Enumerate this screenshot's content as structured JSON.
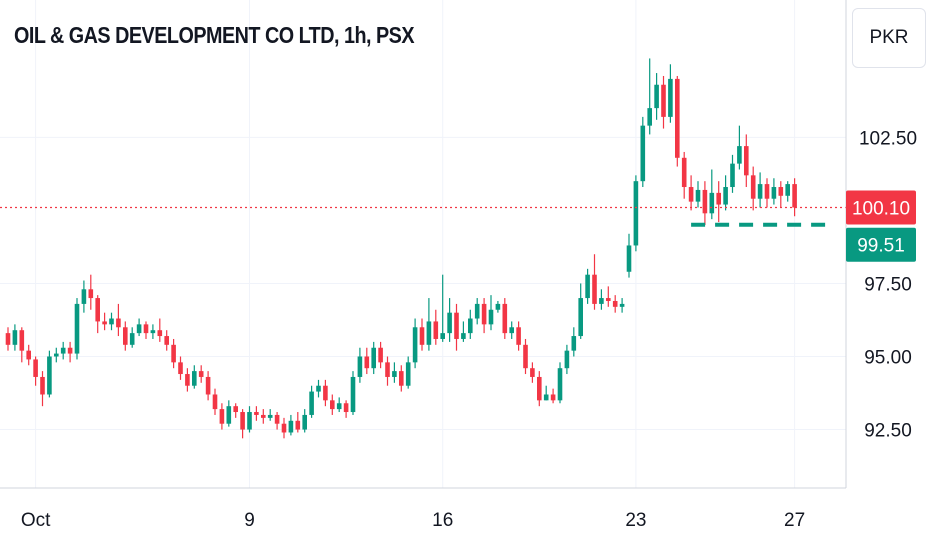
{
  "header": {
    "title": "OIL & GAS DEVELOPMENT CO LTD, 1h, PSX",
    "currency": "PKR"
  },
  "colors": {
    "up": "#089981",
    "down": "#f23645",
    "grid": "#f0f3fa",
    "axis": "#d1d4dc",
    "last_price_line": "#f23645",
    "close_tag": "#089981"
  },
  "chart_data": {
    "type": "candlestick",
    "title": "OIL & GAS DEVELOPMENT CO LTD, 1h, PSX",
    "ylim": [
      90.5,
      107.2
    ],
    "y_ticks": [
      "102.50",
      "97.50",
      "95.00",
      "92.50"
    ],
    "x_ticks": [
      {
        "label": "Oct",
        "index": 4
      },
      {
        "label": "9",
        "index": 35
      },
      {
        "label": "16",
        "index": 63
      },
      {
        "label": "23",
        "index": 91
      },
      {
        "label": "27",
        "index": 114
      }
    ],
    "last_price": {
      "value": 100.1,
      "label": "100.10"
    },
    "close_line": {
      "value": 99.51,
      "label": "99.51",
      "from_index": 99
    },
    "candles": [
      [
        95.8,
        95.4,
        96.0,
        95.2
      ],
      [
        95.4,
        95.9,
        96.1,
        95.2
      ],
      [
        95.9,
        95.2,
        96.0,
        94.8
      ],
      [
        95.2,
        94.9,
        95.4,
        94.7
      ],
      [
        94.9,
        94.3,
        95.0,
        94.0
      ],
      [
        94.3,
        93.7,
        94.5,
        93.3
      ],
      [
        93.7,
        95.0,
        95.2,
        93.6
      ],
      [
        95.0,
        95.1,
        95.3,
        94.8
      ],
      [
        95.1,
        95.3,
        95.5,
        94.9
      ],
      [
        95.3,
        95.1,
        95.5,
        94.8
      ],
      [
        95.1,
        96.8,
        97.0,
        94.9
      ],
      [
        96.8,
        97.3,
        97.6,
        96.5
      ],
      [
        97.3,
        97.0,
        97.8,
        96.6
      ],
      [
        97.0,
        96.2,
        97.1,
        95.8
      ],
      [
        96.2,
        96.1,
        96.5,
        95.9
      ],
      [
        96.1,
        96.3,
        96.5,
        95.9
      ],
      [
        96.3,
        96.0,
        96.8,
        95.7
      ],
      [
        96.0,
        95.4,
        96.2,
        95.2
      ],
      [
        95.4,
        95.8,
        96.0,
        95.3
      ],
      [
        95.8,
        96.1,
        96.3,
        95.7
      ],
      [
        96.1,
        95.8,
        96.2,
        95.6
      ],
      [
        95.8,
        95.9,
        96.1,
        95.6
      ],
      [
        95.9,
        95.7,
        96.3,
        95.5
      ],
      [
        95.7,
        95.4,
        95.9,
        95.2
      ],
      [
        95.4,
        94.8,
        95.6,
        94.6
      ],
      [
        94.8,
        94.4,
        95.0,
        94.2
      ],
      [
        94.4,
        94.0,
        94.6,
        93.8
      ],
      [
        94.0,
        94.5,
        94.7,
        93.9
      ],
      [
        94.5,
        94.3,
        94.7,
        94.1
      ],
      [
        94.3,
        93.7,
        94.5,
        93.5
      ],
      [
        93.7,
        93.2,
        93.9,
        93.0
      ],
      [
        93.2,
        92.7,
        93.4,
        92.5
      ],
      [
        92.7,
        93.3,
        93.5,
        92.6
      ],
      [
        93.3,
        93.1,
        93.4,
        92.9
      ],
      [
        93.1,
        92.5,
        93.2,
        92.2
      ],
      [
        92.5,
        93.1,
        93.3,
        92.4
      ],
      [
        93.1,
        93.0,
        93.3,
        92.8
      ],
      [
        93.0,
        92.9,
        93.2,
        92.7
      ],
      [
        92.9,
        93.0,
        93.2,
        92.8
      ],
      [
        93.0,
        92.7,
        93.1,
        92.5
      ],
      [
        92.7,
        92.4,
        92.9,
        92.2
      ],
      [
        92.4,
        92.8,
        93.0,
        92.3
      ],
      [
        92.8,
        92.5,
        93.1,
        92.4
      ],
      [
        92.5,
        93.0,
        93.2,
        92.4
      ],
      [
        93.0,
        93.8,
        94.0,
        92.9
      ],
      [
        93.8,
        94.0,
        94.2,
        93.6
      ],
      [
        94.0,
        93.5,
        94.2,
        93.3
      ],
      [
        93.5,
        93.2,
        93.7,
        93.0
      ],
      [
        93.2,
        93.4,
        93.6,
        93.1
      ],
      [
        93.4,
        93.1,
        93.5,
        92.9
      ],
      [
        93.1,
        94.3,
        94.5,
        93.0
      ],
      [
        94.3,
        95.0,
        95.3,
        94.1
      ],
      [
        95.0,
        94.6,
        95.3,
        94.4
      ],
      [
        94.6,
        95.3,
        95.5,
        94.4
      ],
      [
        95.3,
        94.8,
        95.5,
        94.6
      ],
      [
        94.8,
        94.3,
        95.0,
        94.0
      ],
      [
        94.3,
        94.5,
        94.8,
        94.1
      ],
      [
        94.5,
        94.0,
        94.7,
        93.8
      ],
      [
        94.0,
        94.8,
        95.0,
        93.9
      ],
      [
        94.8,
        96.0,
        96.3,
        94.6
      ],
      [
        96.0,
        95.4,
        96.3,
        95.2
      ],
      [
        95.4,
        96.2,
        97.0,
        95.2
      ],
      [
        96.2,
        95.6,
        96.6,
        95.4
      ],
      [
        95.6,
        95.8,
        97.8,
        95.5
      ],
      [
        95.8,
        96.5,
        97.0,
        95.5
      ],
      [
        96.5,
        95.6,
        96.8,
        95.2
      ],
      [
        95.6,
        95.8,
        96.2,
        95.5
      ],
      [
        95.8,
        96.3,
        96.6,
        95.6
      ],
      [
        96.3,
        96.8,
        97.0,
        96.1
      ],
      [
        96.8,
        96.1,
        97.0,
        95.8
      ],
      [
        96.1,
        96.6,
        97.1,
        95.9
      ],
      [
        96.6,
        96.8,
        96.9,
        96.5
      ],
      [
        96.8,
        95.8,
        97.0,
        95.6
      ],
      [
        95.8,
        96.0,
        96.2,
        95.6
      ],
      [
        96.0,
        95.4,
        96.2,
        95.2
      ],
      [
        95.4,
        94.6,
        95.6,
        94.4
      ],
      [
        94.6,
        94.3,
        94.8,
        94.1
      ],
      [
        94.3,
        93.5,
        94.5,
        93.3
      ],
      [
        93.5,
        93.7,
        94.0,
        93.5
      ],
      [
        93.7,
        93.5,
        93.9,
        93.4
      ],
      [
        93.5,
        94.6,
        94.8,
        93.4
      ],
      [
        94.6,
        95.2,
        95.4,
        94.4
      ],
      [
        95.2,
        95.7,
        96.0,
        95.0
      ],
      [
        95.7,
        97.0,
        97.5,
        95.6
      ],
      [
        97.0,
        97.8,
        98.0,
        96.8
      ],
      [
        97.8,
        96.8,
        98.5,
        96.6
      ],
      [
        96.8,
        97.0,
        97.3,
        96.6
      ],
      [
        97.0,
        96.9,
        97.4,
        96.7
      ],
      [
        96.9,
        96.7,
        97.1,
        96.5
      ],
      [
        96.7,
        96.8,
        97.0,
        96.5
      ],
      [
        97.9,
        98.8,
        99.2,
        97.7
      ],
      [
        98.8,
        101.0,
        101.2,
        98.6
      ],
      [
        101.0,
        102.9,
        103.2,
        100.8
      ],
      [
        102.9,
        103.5,
        105.2,
        102.6
      ],
      [
        103.5,
        104.3,
        104.7,
        103.1
      ],
      [
        104.3,
        103.2,
        104.6,
        102.8
      ],
      [
        103.2,
        104.5,
        105.0,
        103.0
      ],
      [
        104.5,
        101.8,
        104.6,
        101.5
      ],
      [
        101.8,
        100.8,
        102.0,
        100.4
      ],
      [
        100.8,
        100.3,
        101.2,
        100.0
      ],
      [
        100.3,
        100.7,
        101.0,
        100.1
      ],
      [
        100.7,
        99.9,
        101.0,
        99.5
      ],
      [
        99.9,
        100.6,
        101.4,
        99.7
      ],
      [
        100.6,
        100.2,
        101.0,
        99.6
      ],
      [
        100.2,
        100.8,
        101.2,
        100.0
      ],
      [
        100.8,
        101.6,
        101.9,
        100.6
      ],
      [
        101.6,
        102.2,
        102.9,
        101.4
      ],
      [
        102.2,
        101.2,
        102.6,
        100.8
      ],
      [
        101.2,
        100.4,
        101.5,
        100.0
      ],
      [
        100.4,
        100.9,
        101.3,
        100.1
      ],
      [
        100.9,
        100.4,
        101.1,
        100.1
      ],
      [
        100.4,
        100.8,
        101.1,
        100.2
      ],
      [
        100.8,
        100.5,
        101.0,
        100.1
      ],
      [
        100.5,
        100.9,
        101.0,
        100.3
      ],
      [
        100.9,
        100.1,
        101.1,
        99.8
      ]
    ]
  }
}
